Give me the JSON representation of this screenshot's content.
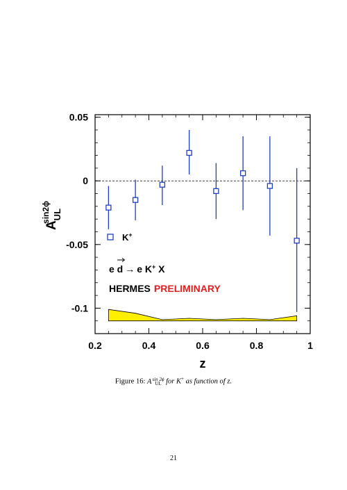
{
  "chart_data": {
    "type": "scatter",
    "x": [
      0.25,
      0.35,
      0.45,
      0.55,
      0.65,
      0.75,
      0.85,
      0.95
    ],
    "series": [
      {
        "name": "K+",
        "values": [
          -0.021,
          -0.015,
          -0.003,
          0.022,
          -0.008,
          0.006,
          -0.004,
          -0.047
        ],
        "err_low": [
          -0.038,
          -0.031,
          -0.019,
          0.005,
          -0.03,
          -0.023,
          -0.043,
          -0.103
        ],
        "err_high": [
          -0.004,
          0.001,
          0.012,
          0.04,
          0.014,
          0.035,
          0.035,
          0.01
        ],
        "color": "#1f3fbf"
      }
    ],
    "systematic_band": {
      "x": [
        0.25,
        0.35,
        0.45,
        0.55,
        0.65,
        0.75,
        0.85,
        0.95
      ],
      "upper": [
        -0.101,
        -0.104,
        -0.109,
        -0.108,
        -0.109,
        -0.108,
        -0.109,
        -0.106
      ],
      "lower": [
        -0.11,
        -0.11,
        -0.11,
        -0.11,
        -0.11,
        -0.11,
        -0.11,
        -0.11
      ],
      "color": "#ffee00"
    },
    "xlim": [
      0.2,
      1.0
    ],
    "ylim": [
      -0.12,
      0.052
    ],
    "xticks": [
      0.2,
      0.4,
      0.6,
      0.8,
      1.0
    ],
    "xtick_labels": [
      "0.2",
      "0.4",
      "0.6",
      "0.8",
      "1"
    ],
    "yticks": [
      0.05,
      0.0,
      -0.05,
      -0.1
    ],
    "ytick_labels": [
      "0.05",
      "0",
      "-0.05",
      "-0.1"
    ],
    "xlabel": "z",
    "ylabel": {
      "main": "A",
      "sup": "sin2ϕ",
      "sub": "UL"
    },
    "zero_line": "dashed",
    "legend": {
      "label": "K",
      "label_sup": "+",
      "marker": "open-square",
      "placement": "left"
    },
    "annotations": {
      "reaction": {
        "lhs": "e d",
        "arrow": "→",
        "rhs_base": "e K",
        "rhs_sup": "+",
        "rhs_tail": " X"
      },
      "experiment": "HERMES",
      "status": "PRELIMINARY",
      "status_color": "#e02020"
    }
  },
  "caption": {
    "figure_label": "Figure 16:",
    "quantity": "A",
    "quantity_sup": "sin 2ϕ",
    "quantity_sub": "UL",
    "text_mid": "for K",
    "text_sup": "+",
    "text_end": "as function of z."
  },
  "page_number": "21"
}
